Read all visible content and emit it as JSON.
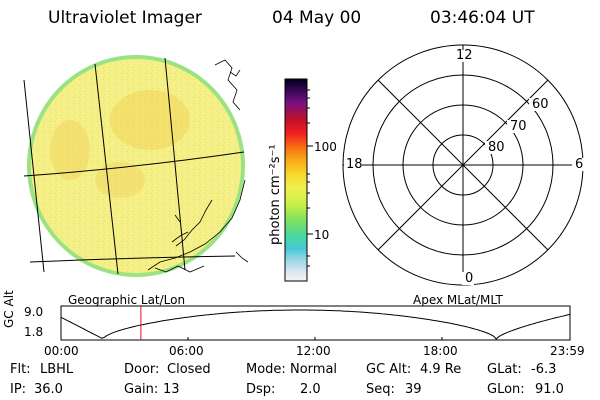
{
  "header": {
    "instrument": "Ultraviolet Imager",
    "date": "04 May 00",
    "time": "03:46:04 UT"
  },
  "colorbar": {
    "unit_label": "photon cm⁻²s⁻¹",
    "ticks": [
      "100",
      "10"
    ],
    "scale": "log"
  },
  "left_panel": {
    "caption": "Geographic Lat/Lon"
  },
  "right_panel": {
    "caption": "Apex MLat/MLT",
    "mlt_labels": {
      "top": "12",
      "left": "18",
      "right": "6",
      "bottom": "0"
    },
    "lat_labels": [
      "60",
      "70",
      "80"
    ]
  },
  "altitude_plot": {
    "ylabel": "GC Alt",
    "yticks": [
      "9.0",
      "1.8"
    ],
    "xticks": [
      "00:00",
      "06:00",
      "12:00",
      "18:00",
      "23:59"
    ],
    "marker_time": "03:46"
  },
  "status": {
    "flt_label": "Flt:",
    "flt_value": "LBHL",
    "door_label": "Door:",
    "door_value": "Closed",
    "mode_label": "Mode:",
    "mode_value": "Normal",
    "gcalt_label": "GC Alt:",
    "gcalt_value": "4.9 Re",
    "glat_label": "GLat:",
    "glat_value": "-6.3",
    "ip_label": "IP:",
    "ip_value": "36.0",
    "gain_label": "Gain:",
    "gain_value": "13",
    "dsp_label": "Dsp:",
    "dsp_value": "2.0",
    "seq_label": "Seq:",
    "seq_value": "39",
    "glon_label": "GLon:",
    "glon_value": "91.0"
  },
  "colors": {
    "image_fill": "#f2ee7a",
    "image_edge": "#8fe07a",
    "marker": "#e81010"
  }
}
